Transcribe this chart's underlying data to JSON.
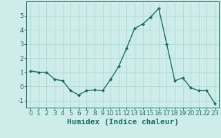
{
  "x": [
    0,
    1,
    2,
    3,
    4,
    5,
    6,
    7,
    8,
    9,
    10,
    11,
    12,
    13,
    14,
    15,
    16,
    17,
    18,
    19,
    20,
    21,
    22,
    23
  ],
  "y": [
    1.1,
    1.0,
    1.0,
    0.5,
    0.4,
    -0.3,
    -0.6,
    -0.3,
    -0.25,
    -0.3,
    0.5,
    1.4,
    2.7,
    4.1,
    4.4,
    4.9,
    5.5,
    3.0,
    0.4,
    0.6,
    -0.1,
    -0.3,
    -0.3,
    -1.2
  ],
  "xlabel": "Humidex (Indice chaleur)",
  "xlim": [
    -0.5,
    23.5
  ],
  "ylim": [
    -1.5,
    6.0
  ],
  "yticks": [
    -1,
    0,
    1,
    2,
    3,
    4,
    5
  ],
  "xticks": [
    0,
    1,
    2,
    3,
    4,
    5,
    6,
    7,
    8,
    9,
    10,
    11,
    12,
    13,
    14,
    15,
    16,
    17,
    18,
    19,
    20,
    21,
    22,
    23
  ],
  "line_color": "#1a6b5e",
  "marker": "D",
  "marker_size": 2.0,
  "bg_color": "#ceecea",
  "grid_color": "#b0dbd8",
  "xlabel_fontsize": 8,
  "tick_fontsize": 6.5,
  "line_width": 1.0
}
